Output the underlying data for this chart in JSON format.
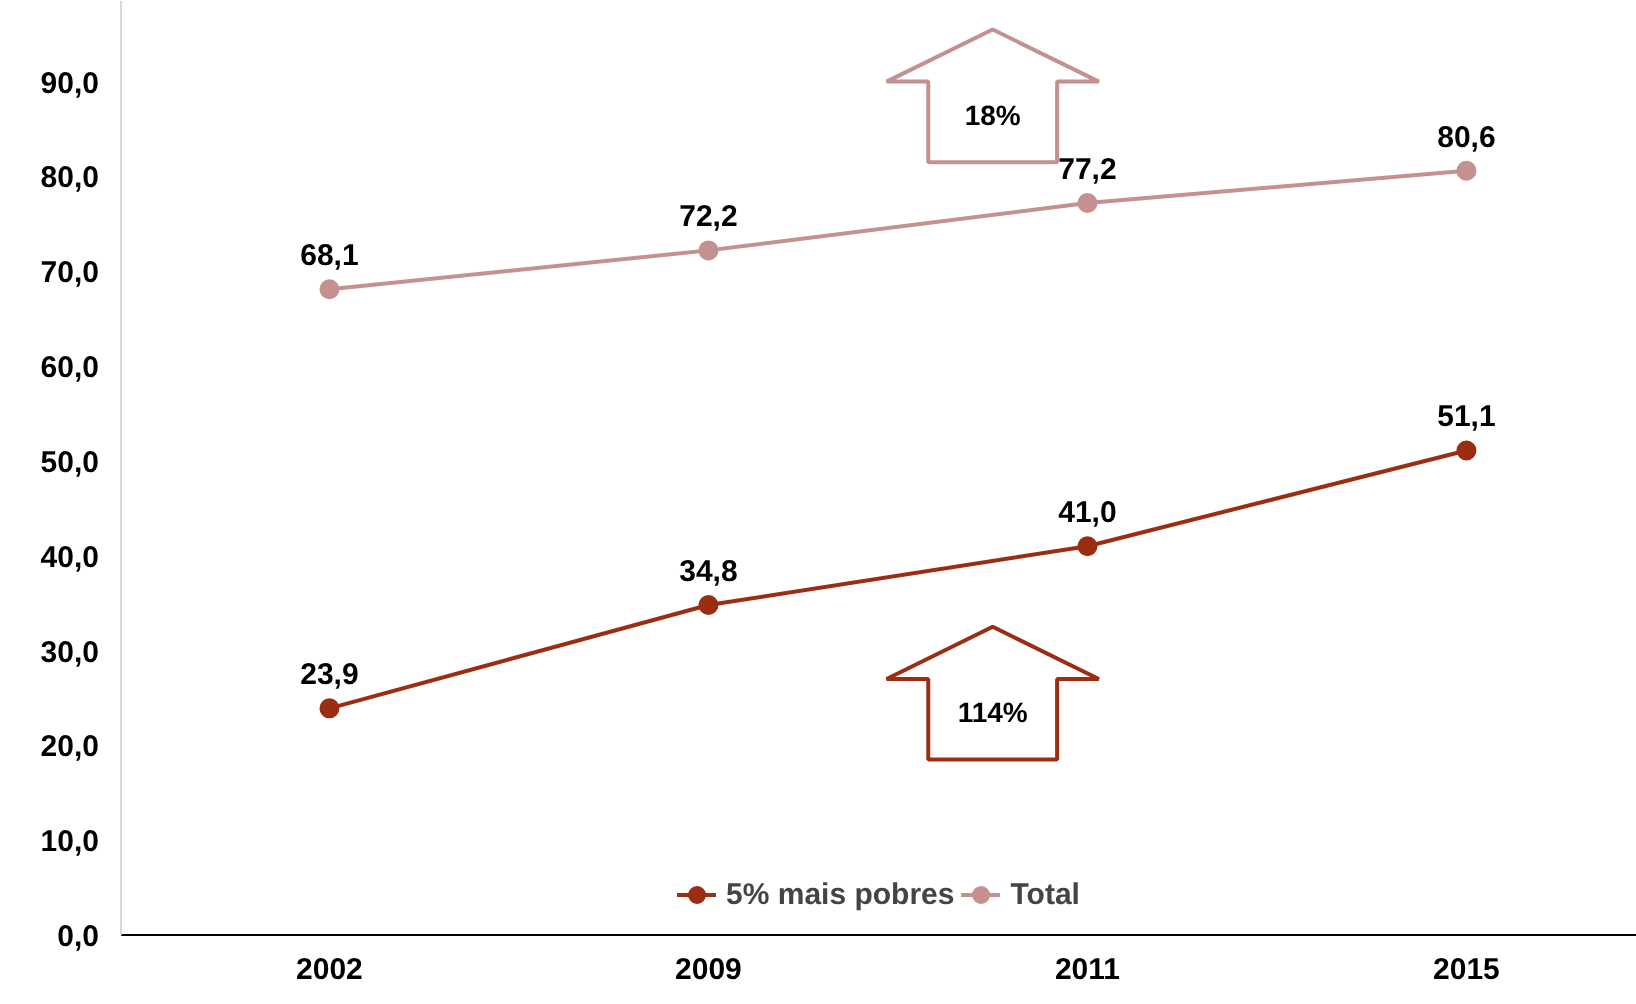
{
  "chart_data": {
    "type": "line",
    "categories": [
      "2002",
      "2009",
      "2011",
      "2015"
    ],
    "series": [
      {
        "name": "5% mais pobres",
        "color": "#9b2d12",
        "values": [
          23.9,
          34.8,
          41.0,
          51.1
        ],
        "value_labels": [
          "23,9",
          "34,8",
          "41,0",
          "51,1"
        ]
      },
      {
        "name": "Total",
        "color": "#c49090",
        "values": [
          68.1,
          72.2,
          77.2,
          80.6
        ],
        "value_labels": [
          "68,1",
          "72,2",
          "77,2",
          "80,6"
        ]
      }
    ],
    "ylim": [
      0,
      98.5
    ],
    "yticks": [
      {
        "value": 0,
        "label": "0,0"
      },
      {
        "value": 10,
        "label": "10,0"
      },
      {
        "value": 20,
        "label": "20,0"
      },
      {
        "value": 30,
        "label": "30,0"
      },
      {
        "value": 40,
        "label": "40,0"
      },
      {
        "value": 50,
        "label": "50,0"
      },
      {
        "value": 60,
        "label": "60,0"
      },
      {
        "value": 70,
        "label": "70,0"
      },
      {
        "value": 80,
        "label": "80,0"
      },
      {
        "value": 90,
        "label": "90,0"
      }
    ],
    "annotations": [
      "18%",
      "114%"
    ],
    "legend": "bottom",
    "grid": false,
    "marker": "circle",
    "line_style": "solid"
  }
}
